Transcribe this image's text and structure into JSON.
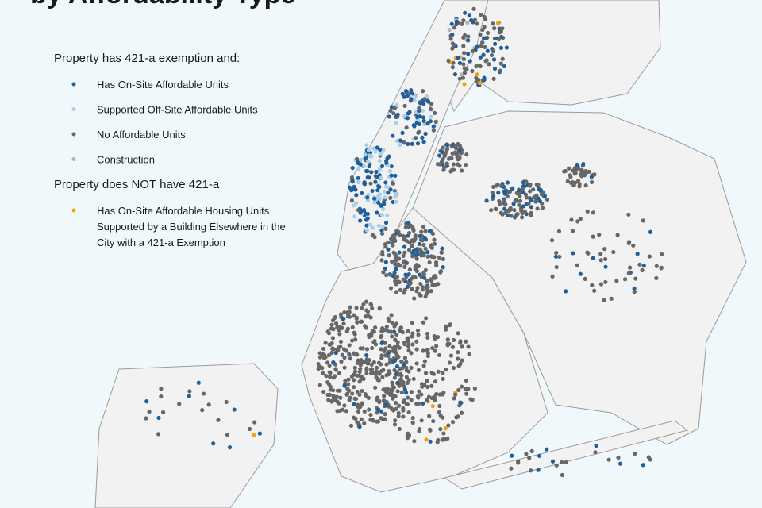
{
  "title": "by Affordability Type",
  "legend": {
    "groups": [
      {
        "heading": "Property has 421-a exemption and:",
        "items": [
          {
            "label_lines": [
              "Has On-Site Affordable Units"
            ],
            "color": "#1f5f9a"
          },
          {
            "label_lines": [
              "Supported Off-Site Affordable Units"
            ],
            "color": "#a9d0ea"
          },
          {
            "label_lines": [
              "No Affordable Units"
            ],
            "color": "#676767"
          },
          {
            "label_lines": [
              "Construction"
            ],
            "color": "#b3b3b3"
          }
        ]
      },
      {
        "heading": "Property does NOT have 421-a",
        "items": [
          {
            "label_lines": [
              "Has On-Site Affordable Housing Units",
              "Supported by a Building Elsewhere in the",
              "City with a 421-a Exemption"
            ],
            "color": "#f2a20f"
          }
        ]
      }
    ]
  }
}
